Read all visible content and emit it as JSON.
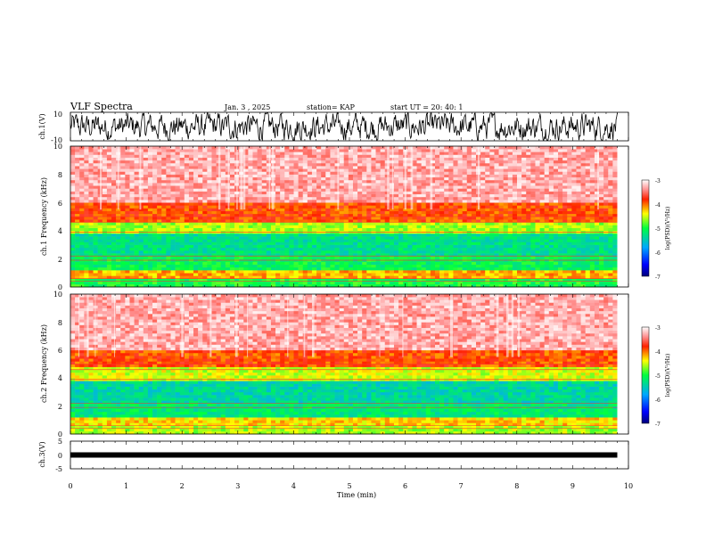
{
  "header": {
    "title": "VLF Spectra",
    "date": "Jan. 3 , 2025",
    "station": "station= KAP",
    "start_ut": "start UT = 20: 40: 1"
  },
  "chart_data": [
    {
      "type": "line",
      "name": "ch1-waveform",
      "ylabel": "ch.1(V)",
      "ylim": [
        -10,
        10
      ],
      "yticks": [
        "10",
        "-10"
      ],
      "x_range_min": [
        0,
        9.8
      ]
    },
    {
      "type": "heatmap",
      "name": "ch1-spectrogram",
      "ylabel": "ch.1 Frequency (kHz)",
      "ylim": [
        0,
        10
      ],
      "yticks": [
        "0",
        "2",
        "4",
        "6",
        "8",
        "10"
      ],
      "x_range_min": [
        0,
        9.8
      ],
      "colorbar": {
        "label": "log(PSD)(V²/Hz)",
        "range": [
          -7,
          -3
        ],
        "ticks": [
          "-3",
          "-4",
          "-5",
          "-6",
          "-7"
        ]
      },
      "bands_khz": [
        {
          "from": 0,
          "to": 0.7,
          "level": -5.0
        },
        {
          "from": 0.7,
          "to": 1.3,
          "level": -4.2
        },
        {
          "from": 1.3,
          "to": 2.3,
          "level": -5.1
        },
        {
          "from": 2.3,
          "to": 3.7,
          "level": -5.3
        },
        {
          "from": 3.7,
          "to": 4.6,
          "level": -4.6
        },
        {
          "from": 4.6,
          "to": 6.0,
          "level": -3.9
        },
        {
          "from": 6.0,
          "to": 10.0,
          "level": -3.3
        }
      ]
    },
    {
      "type": "heatmap",
      "name": "ch2-spectrogram",
      "ylabel": "ch.2 Frequency (kHz)",
      "ylim": [
        0,
        10
      ],
      "yticks": [
        "0",
        "2",
        "4",
        "6",
        "8",
        "10"
      ],
      "x_range_min": [
        0,
        9.8
      ],
      "colorbar": {
        "label": "log(PSD)(V²/Hz)",
        "range": [
          -7,
          -3
        ],
        "ticks": [
          "-3",
          "-4",
          "-5",
          "-6",
          "-7"
        ]
      },
      "bands_khz": [
        {
          "from": 0,
          "to": 0.7,
          "level": -4.6
        },
        {
          "from": 0.7,
          "to": 1.3,
          "level": -4.3
        },
        {
          "from": 1.3,
          "to": 2.2,
          "level": -5.2
        },
        {
          "from": 2.2,
          "to": 3.7,
          "level": -5.4
        },
        {
          "from": 3.7,
          "to": 4.8,
          "level": -4.5
        },
        {
          "from": 4.8,
          "to": 6.0,
          "level": -3.9
        },
        {
          "from": 6.0,
          "to": 10.0,
          "level": -3.3
        }
      ]
    },
    {
      "type": "line",
      "name": "ch3-waveform",
      "ylabel": "ch.3(V)",
      "ylim": [
        -5,
        5
      ],
      "yticks": [
        "5",
        "0",
        "-5"
      ],
      "x_range_min": [
        0,
        9.8
      ],
      "level_v": 0
    }
  ],
  "xaxis": {
    "label": "Time (min)",
    "range": [
      0,
      10
    ],
    "ticks": [
      "0",
      "1",
      "2",
      "3",
      "4",
      "5",
      "6",
      "7",
      "8",
      "9",
      "10"
    ]
  }
}
